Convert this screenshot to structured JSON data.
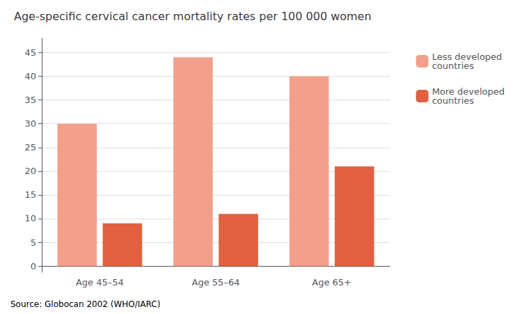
{
  "chart_data": {
    "type": "bar",
    "title": "Age-specific cervical cancer mortality rates per 100 000 women",
    "categories": [
      "Age 45–54",
      "Age 55–64",
      "Age 65+"
    ],
    "series": [
      {
        "name": "Less developed\ncountries",
        "color": "#f2a08c",
        "values": [
          30,
          44,
          40
        ]
      },
      {
        "name": "More developed\ncountries",
        "color": "#e06040",
        "values": [
          9,
          11,
          21
        ]
      }
    ],
    "ylim": [
      -1.3,
      48
    ],
    "yticks": [
      0,
      5,
      10,
      15,
      20,
      25,
      30,
      35,
      40,
      45
    ],
    "grid": true,
    "legend": "right",
    "source": "Source: Globocan 2002 (WHO/IARC)"
  }
}
